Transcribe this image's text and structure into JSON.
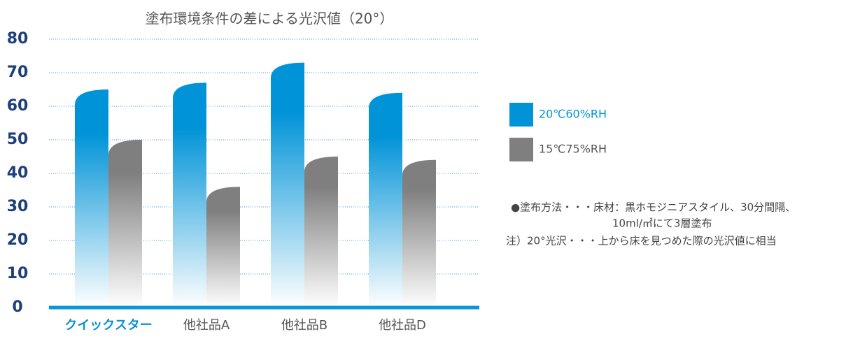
{
  "chart_data": {
    "type": "bar",
    "title": "塗布環境条件の差による光沢値（20°）",
    "categories": [
      "クイックスター",
      "他社品A",
      "他社品B",
      "他社品D"
    ],
    "series": [
      {
        "name": "20℃60%RH",
        "color": "#0093d8",
        "values": [
          65,
          67,
          73,
          64
        ]
      },
      {
        "name": "15℃75%RH",
        "color": "#7f7f7f",
        "values": [
          50,
          36,
          45,
          44
        ]
      }
    ],
    "ylim": [
      0,
      80
    ],
    "yticks": [
      0,
      10,
      20,
      30,
      40,
      50,
      60,
      70,
      80
    ],
    "grid": true,
    "legend": "right",
    "notes": [
      "●塗布方法・・・床材：黒ホモジニアスタイル、30分間隔、",
      "10ml/㎡にて3層塗布",
      "注）20°光沢・・・上から床を見つめた際の光沢値に相当"
    ]
  }
}
